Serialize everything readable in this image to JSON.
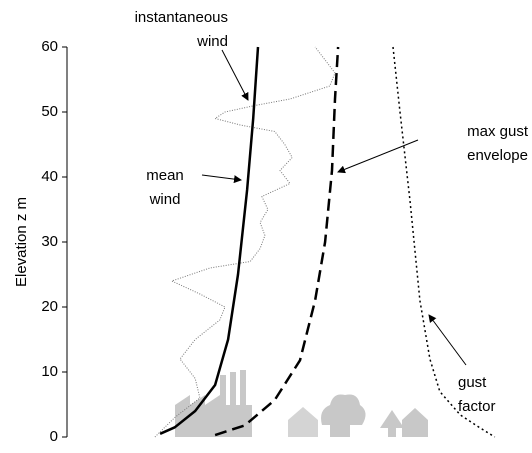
{
  "chart_data": {
    "type": "line",
    "ylabel": "Elevation  z m",
    "ylim": [
      0,
      60
    ],
    "yticks": [
      0,
      10,
      20,
      30,
      40,
      50,
      60
    ],
    "xlim": [
      0,
      100
    ],
    "series": [
      {
        "label": [
          "instantaneous",
          "wind"
        ],
        "color": "#777777",
        "style": "dotted",
        "x": [
          20.3,
          24.9,
          30.7,
          29.6,
          26.1,
          29.6,
          35.3,
          36.5,
          30.7,
          24.2,
          33,
          42.3,
          44.6,
          45.7,
          44.6,
          46.4,
          45,
          51.5,
          49.2,
          52,
          50.3,
          48,
          40,
          34.2,
          36.5,
          43.4,
          51.5,
          60.7,
          61.9,
          59.6,
          57.3
        ],
        "values": [
          0,
          3,
          6,
          9,
          12,
          15,
          18,
          20,
          22,
          24,
          26,
          27,
          29,
          31,
          33,
          35,
          37,
          39,
          41,
          43,
          45,
          47,
          48,
          49,
          50,
          51,
          52,
          54,
          56,
          58,
          60
        ]
      },
      {
        "label": [
          "mean",
          "wind"
        ],
        "color": "#000000",
        "style": "solid",
        "x": [
          21.5,
          24.9,
          29.6,
          34.2,
          37.2,
          39.5,
          41.6,
          43,
          44.1
        ],
        "values": [
          0.5,
          1.5,
          4,
          8,
          15,
          25,
          38,
          49,
          60
        ]
      },
      {
        "label": [
          "max gust",
          "envelope"
        ],
        "color": "#000000",
        "style": "dashed",
        "x": [
          34.2,
          41.1,
          48,
          53.8,
          57.3,
          59.6,
          61.2,
          61.9,
          62.6
        ],
        "values": [
          0.3,
          1.8,
          5.7,
          11.8,
          21,
          30,
          41,
          52,
          60
        ]
      },
      {
        "label": [
          "gust",
          "factor"
        ],
        "color": "#000000",
        "style": "dotted-bold",
        "x": [
          75.3,
          76.9,
          79.2,
          81.5,
          83.8,
          86.1,
          90.8,
          95.4,
          98.8
        ],
        "values": [
          60,
          50,
          36.5,
          21,
          12,
          7,
          3.4,
          1.4,
          0
        ]
      }
    ]
  }
}
